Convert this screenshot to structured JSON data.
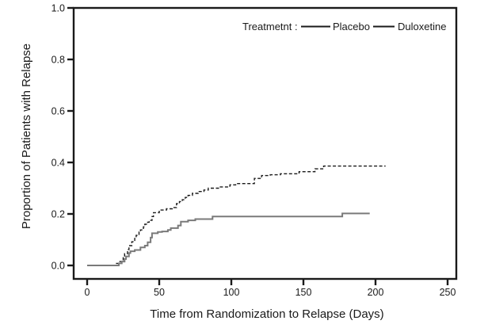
{
  "figure": {
    "background": "#ffffff",
    "frame_color": "#1a1a1a",
    "text_color": "#1a1a1a"
  },
  "chart_data": {
    "type": "line",
    "subtype": "kaplan_meier_step",
    "title": "",
    "xlabel": "Time from Randomization to Relapse (Days)",
    "ylabel": "Proportion of Patients with Relapse",
    "xlim": [
      0,
      250
    ],
    "ylim": [
      0,
      1
    ],
    "x_ticks": [
      0,
      50,
      100,
      150,
      200,
      250
    ],
    "y_ticks": [
      "0.0",
      "0.2",
      "0.4",
      "0.6",
      "0.8",
      "1.0"
    ],
    "grid": false,
    "legend": {
      "title": "Treatmetnt :",
      "position": "top-right-inside",
      "entries": [
        {
          "label": "Placebo",
          "line_style": "dashed"
        },
        {
          "label": "Duloxetine",
          "line_style": "solid"
        }
      ]
    },
    "series": [
      {
        "name": "Placebo",
        "line_style": "dashed",
        "color": "#1a1a1a",
        "points_day_proportion": [
          [
            0,
            0
          ],
          [
            20,
            0.008
          ],
          [
            22,
            0.015
          ],
          [
            25,
            0.03
          ],
          [
            26,
            0.046
          ],
          [
            28,
            0.062
          ],
          [
            29,
            0.077
          ],
          [
            31,
            0.092
          ],
          [
            33,
            0.108
          ],
          [
            34,
            0.117
          ],
          [
            36,
            0.13
          ],
          [
            37,
            0.138
          ],
          [
            39,
            0.15
          ],
          [
            40,
            0.16
          ],
          [
            42,
            0.168
          ],
          [
            43,
            0.175
          ],
          [
            45,
            0.19
          ],
          [
            46,
            0.205
          ],
          [
            50,
            0.215
          ],
          [
            55,
            0.22
          ],
          [
            59,
            0.225
          ],
          [
            62,
            0.24
          ],
          [
            64,
            0.248
          ],
          [
            66,
            0.255
          ],
          [
            68,
            0.264
          ],
          [
            70,
            0.272
          ],
          [
            73,
            0.28
          ],
          [
            77,
            0.287
          ],
          [
            81,
            0.293
          ],
          [
            84,
            0.3
          ],
          [
            92,
            0.305
          ],
          [
            99,
            0.313
          ],
          [
            103,
            0.318
          ],
          [
            116,
            0.338
          ],
          [
            121,
            0.349
          ],
          [
            127,
            0.352
          ],
          [
            134,
            0.356
          ],
          [
            147,
            0.364
          ],
          [
            158,
            0.375
          ],
          [
            164,
            0.386
          ],
          [
            207,
            0.386
          ]
        ]
      },
      {
        "name": "Duloxetine",
        "line_style": "solid",
        "color": "#7a7a7a",
        "points_day_proportion": [
          [
            0,
            0
          ],
          [
            22,
            0.008
          ],
          [
            24,
            0.015
          ],
          [
            26,
            0.025
          ],
          [
            27,
            0.035
          ],
          [
            29,
            0.048
          ],
          [
            30,
            0.055
          ],
          [
            33,
            0.06
          ],
          [
            37,
            0.07
          ],
          [
            40,
            0.077
          ],
          [
            42,
            0.09
          ],
          [
            44,
            0.108
          ],
          [
            45,
            0.125
          ],
          [
            49,
            0.13
          ],
          [
            52,
            0.132
          ],
          [
            56,
            0.138
          ],
          [
            58,
            0.145
          ],
          [
            63,
            0.155
          ],
          [
            65,
            0.17
          ],
          [
            70,
            0.175
          ],
          [
            75,
            0.18
          ],
          [
            87,
            0.19
          ],
          [
            177,
            0.202
          ],
          [
            196,
            0.202
          ]
        ]
      }
    ]
  }
}
